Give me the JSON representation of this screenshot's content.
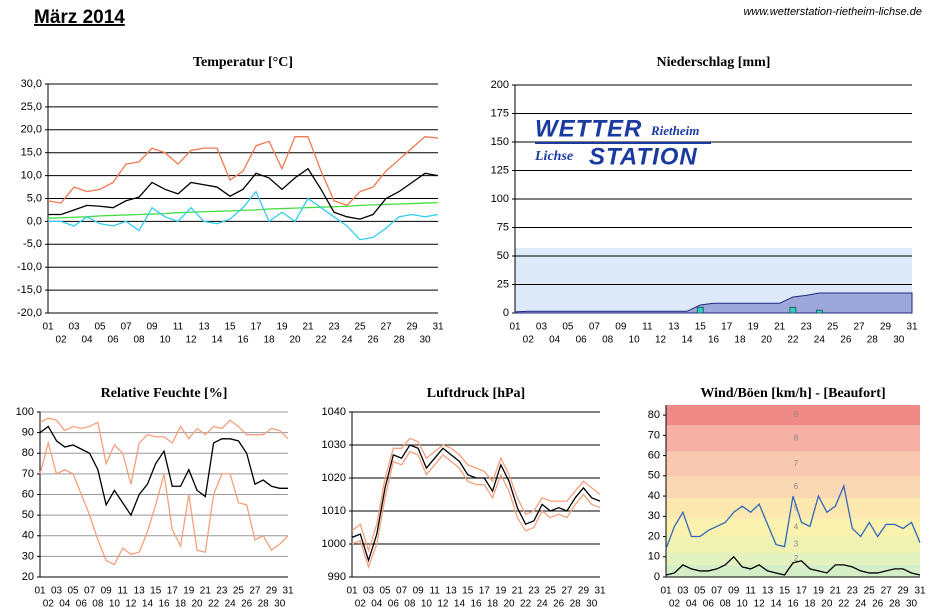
{
  "header": {
    "title": "März 2014",
    "url": "www.wetterstation-rietheim-lichse.de"
  },
  "chart_data": [
    {
      "type": "line",
      "title": "Temperatur [°C]",
      "categories": [
        "01",
        "02",
        "03",
        "04",
        "05",
        "06",
        "07",
        "08",
        "09",
        "10",
        "11",
        "12",
        "13",
        "14",
        "15",
        "16",
        "17",
        "18",
        "19",
        "20",
        "21",
        "22",
        "23",
        "24",
        "25",
        "26",
        "27",
        "28",
        "29",
        "30",
        "31"
      ],
      "ylim": [
        -20,
        30
      ],
      "yticks": [
        {
          "value": -20,
          "label": "-20,0"
        },
        {
          "value": -15,
          "label": "-15,0"
        },
        {
          "value": -10,
          "label": "-10,0"
        },
        {
          "value": -5,
          "label": "-5,0"
        },
        {
          "value": 0,
          "label": "0,0"
        },
        {
          "value": 5,
          "label": "5,0"
        },
        {
          "value": 10,
          "label": "10,0"
        },
        {
          "value": 15,
          "label": "15,0"
        },
        {
          "value": 20,
          "label": "20,0"
        },
        {
          "value": 25,
          "label": "25,0"
        },
        {
          "value": 30,
          "label": "30,0"
        }
      ],
      "grid": true,
      "series": [
        {
          "color": "#44dd44",
          "style": "line",
          "values": [
            0.7,
            0.8,
            0.9,
            1.0,
            1.2,
            1.3,
            1.4,
            1.5,
            1.6,
            1.7,
            1.9,
            2.0,
            2.1,
            2.2,
            2.3,
            2.4,
            2.5,
            2.7,
            2.8,
            2.9,
            3.0,
            3.1,
            3.2,
            3.3,
            3.5,
            3.6,
            3.7,
            3.8,
            3.9,
            4.0,
            4.1
          ]
        },
        {
          "color": "#f07850",
          "style": "line",
          "values": [
            4.5,
            4,
            7.5,
            6.5,
            7,
            8.5,
            12.5,
            13,
            16,
            15,
            12.5,
            15.5,
            16,
            16,
            9,
            11,
            16.5,
            17.5,
            11.5,
            18.5,
            18.5,
            11,
            4.5,
            3.5,
            6.5,
            7.5,
            11,
            13.5,
            16,
            18.5,
            18.2
          ]
        },
        {
          "color": "#33ccee",
          "style": "line",
          "values": [
            0,
            0,
            -1,
            1,
            -0.5,
            -1,
            0,
            -2,
            3,
            1,
            0,
            3,
            0,
            -0.5,
            0.5,
            3,
            6.5,
            0,
            2,
            0,
            5,
            3,
            1,
            -1,
            -4,
            -3.5,
            -1.5,
            1,
            1.5,
            1,
            1.5
          ]
        },
        {
          "color": "#000000",
          "style": "line",
          "values": [
            1.5,
            1.5,
            2.5,
            3.5,
            3.3,
            3,
            4.5,
            5.3,
            8.5,
            7,
            6,
            8.5,
            8,
            7.5,
            5.5,
            7,
            10.5,
            9.5,
            7,
            9.5,
            11.5,
            7,
            2,
            1,
            0.5,
            1.5,
            5,
            6.5,
            8.5,
            10.5,
            10
          ]
        }
      ]
    },
    {
      "type": "line",
      "title": "Niederschlag [mm]",
      "categories": [
        "01",
        "02",
        "03",
        "04",
        "05",
        "06",
        "07",
        "08",
        "09",
        "10",
        "11",
        "12",
        "13",
        "14",
        "15",
        "16",
        "17",
        "18",
        "19",
        "20",
        "21",
        "22",
        "23",
        "24",
        "25",
        "26",
        "27",
        "28",
        "29",
        "30",
        "31"
      ],
      "ylim": [
        0,
        200
      ],
      "yticks": [
        0,
        25,
        50,
        75,
        100,
        125,
        150,
        175,
        200
      ],
      "grid": true,
      "logo": [
        "WETTER",
        "Rietheim",
        "Lichse",
        "STATION"
      ],
      "series": [
        {
          "color": "#9ea7d9",
          "style": "area",
          "values": [
            1,
            1.5,
            1.5,
            1.5,
            1.5,
            1.5,
            1.5,
            1.5,
            1.5,
            1.5,
            1.5,
            1.5,
            1.5,
            1.5,
            7,
            8.5,
            8.5,
            8.5,
            8.5,
            8.5,
            8.5,
            14,
            15.5,
            17.5,
            17.5,
            17.5,
            17.5,
            17.5,
            17.5,
            17.5,
            17.5
          ]
        },
        {
          "color": "#33cccc",
          "style": "bar",
          "values": [
            0,
            0,
            0,
            0,
            0,
            0,
            0,
            0,
            0,
            0,
            0,
            0,
            0,
            0,
            5,
            0,
            0,
            0,
            0,
            0,
            0,
            5,
            0,
            2.5,
            0,
            0,
            0,
            0,
            0,
            0,
            0
          ]
        }
      ]
    },
    {
      "type": "line",
      "title": "Relative Feuchte [%]",
      "categories": [
        "01",
        "02",
        "03",
        "04",
        "05",
        "06",
        "07",
        "08",
        "09",
        "10",
        "11",
        "12",
        "13",
        "14",
        "15",
        "16",
        "17",
        "18",
        "19",
        "20",
        "21",
        "22",
        "23",
        "24",
        "25",
        "26",
        "27",
        "28",
        "29",
        "30",
        "31"
      ],
      "ylim": [
        20,
        100
      ],
      "yticks": [
        20,
        30,
        40,
        50,
        60,
        70,
        80,
        90,
        100
      ],
      "grid": true,
      "series": [
        {
          "color": "#f4a07c",
          "style": "line",
          "values": [
            95,
            97,
            96,
            91,
            93,
            92,
            93,
            95,
            75,
            84,
            80,
            65,
            85,
            89,
            88,
            88,
            85,
            93,
            87,
            92,
            89,
            93,
            92,
            96,
            93,
            89,
            89,
            89,
            92,
            91,
            87
          ]
        },
        {
          "color": "#f4a07c",
          "style": "line",
          "values": [
            70,
            85,
            70,
            72,
            70,
            60,
            50,
            38,
            28,
            26,
            34,
            31,
            32,
            42,
            55,
            70,
            43,
            35,
            60,
            33,
            32,
            60,
            70,
            70,
            56,
            55,
            38,
            40,
            33,
            36,
            40
          ]
        },
        {
          "color": "#000000",
          "style": "line",
          "values": [
            90,
            93,
            86,
            83,
            84,
            82,
            80,
            72,
            55,
            62,
            56,
            50,
            60,
            65,
            75,
            81,
            64,
            64,
            72,
            62,
            59,
            85,
            87,
            87,
            86,
            80,
            65,
            67,
            64,
            63,
            63
          ]
        }
      ]
    },
    {
      "type": "line",
      "title": "Luftdruck [hPa]",
      "categories": [
        "01",
        "02",
        "03",
        "04",
        "05",
        "06",
        "07",
        "08",
        "09",
        "10",
        "11",
        "12",
        "13",
        "14",
        "15",
        "16",
        "17",
        "18",
        "19",
        "20",
        "21",
        "22",
        "23",
        "24",
        "25",
        "26",
        "27",
        "28",
        "29",
        "30",
        "31"
      ],
      "ylim": [
        990,
        1040
      ],
      "yticks": [
        990,
        1000,
        1010,
        1020,
        1030,
        1040
      ],
      "grid": true,
      "series": [
        {
          "color": "#f4a07c",
          "style": "line",
          "values": [
            1004,
            1006,
            998,
            1006,
            1020,
            1029,
            1029,
            1032,
            1031,
            1026,
            1028,
            1030,
            1029,
            1027,
            1024,
            1023,
            1022,
            1019,
            1026,
            1021,
            1014,
            1009,
            1010,
            1014,
            1013,
            1013,
            1013,
            1016,
            1019,
            1017,
            1015
          ]
        },
        {
          "color": "#f4a07c",
          "style": "line",
          "values": [
            1000,
            1001,
            993,
            1000,
            1014,
            1025,
            1024,
            1028,
            1027,
            1021,
            1024,
            1027,
            1025,
            1023,
            1019,
            1018,
            1018,
            1014,
            1021,
            1016,
            1008,
            1004,
            1005,
            1010,
            1008,
            1009,
            1008,
            1012,
            1015,
            1012,
            1011
          ]
        },
        {
          "color": "#000000",
          "style": "line",
          "values": [
            1002,
            1003,
            995,
            1003,
            1017,
            1027,
            1026,
            1030,
            1029,
            1023,
            1026,
            1029,
            1027,
            1025,
            1021,
            1020,
            1020,
            1016,
            1024,
            1019,
            1011,
            1006,
            1007,
            1012,
            1010,
            1011,
            1010,
            1014,
            1017,
            1014,
            1013
          ]
        }
      ]
    },
    {
      "type": "line",
      "title": "Wind/Böen [km/h] - [Beaufort]",
      "categories": [
        "01",
        "02",
        "03",
        "04",
        "05",
        "06",
        "07",
        "08",
        "09",
        "10",
        "11",
        "12",
        "13",
        "14",
        "15",
        "16",
        "17",
        "18",
        "19",
        "20",
        "21",
        "22",
        "23",
        "24",
        "25",
        "26",
        "27",
        "28",
        "29",
        "30",
        "31"
      ],
      "ylim": [
        0,
        85
      ],
      "yticks": [
        0,
        10,
        20,
        30,
        40,
        50,
        60,
        70,
        80
      ],
      "grid": false,
      "bands": [
        {
          "label": "2",
          "from": 6,
          "to": 12,
          "color": "#e4f2c0"
        },
        {
          "label": "3",
          "from": 12,
          "to": 20,
          "color": "#f0f2b4"
        },
        {
          "label": "4",
          "from": 20,
          "to": 29,
          "color": "#fbf2b0"
        },
        {
          "label": "5",
          "from": 29,
          "to": 39,
          "color": "#fde8b0"
        },
        {
          "label": "6",
          "from": 39,
          "to": 50,
          "color": "#fbd8b4"
        },
        {
          "label": "7",
          "from": 50,
          "to": 62,
          "color": "#f9c8b0"
        },
        {
          "label": "8",
          "from": 62,
          "to": 75,
          "color": "#f6b0a6"
        },
        {
          "label": "9",
          "from": 75,
          "to": 85,
          "color": "#f08a86"
        }
      ],
      "series": [
        {
          "color": "#3366bb",
          "style": "line",
          "values": [
            14,
            25,
            32,
            20,
            20,
            23,
            25,
            27,
            32,
            35,
            32,
            36,
            26,
            16,
            15,
            40,
            27,
            25,
            40,
            32,
            35,
            45,
            24,
            20,
            27,
            20,
            26,
            26,
            24,
            27,
            17
          ]
        },
        {
          "color": "#000000",
          "style": "line",
          "values": [
            1,
            2,
            6,
            4,
            3,
            3,
            4,
            6,
            10,
            5,
            4,
            6,
            3,
            2,
            1,
            7,
            8,
            4,
            3,
            2,
            6,
            6,
            5,
            3,
            2,
            2,
            3,
            4,
            4,
            2,
            1
          ]
        }
      ]
    }
  ]
}
